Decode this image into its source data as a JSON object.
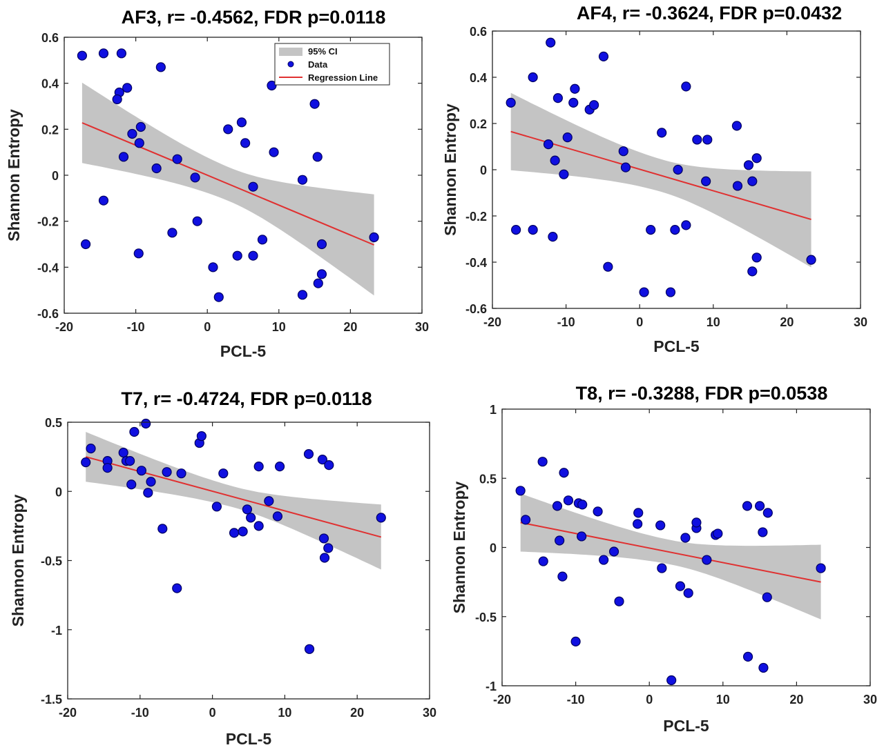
{
  "legend": {
    "ci_label": "95% CI",
    "data_label": "Data",
    "line_label": "Regression Line"
  },
  "colors": {
    "marker_fill": "#1010e0",
    "marker_edge": "#000060",
    "regression_line": "#e03030",
    "ci_band": "#c4c4c4"
  },
  "chart_data": [
    {
      "type": "scatter",
      "title": "AF3, r= -0.4562, FDR p=0.0118",
      "xlabel": "PCL-5",
      "ylabel": "Shannon Entropy",
      "xlim": [
        -20,
        30
      ],
      "ylim": [
        -0.6,
        0.6
      ],
      "xticks": [
        -20,
        -10,
        0,
        10,
        20,
        30
      ],
      "yticks": [
        -0.6,
        -0.4,
        -0.2,
        0,
        0.2,
        0.4,
        0.6
      ],
      "xticklabels": [
        "-20",
        "-10",
        "0",
        "10",
        "20",
        "30"
      ],
      "yticklabels": [
        "-0.6",
        "-0.4",
        "-0.2",
        "0",
        "0.2",
        "0.4",
        "0.6"
      ],
      "grid": false,
      "legend_position": "top-right",
      "show_legend": true,
      "regression": {
        "x": [
          -17.5,
          23.3
        ],
        "y": [
          0.228,
          -0.303
        ]
      },
      "ci": {
        "x": [
          -17.5,
          23.3
        ],
        "upper": [
          0.4,
          -0.08
        ],
        "lower": [
          0.05,
          -0.52
        ],
        "center_x": 3
      },
      "points": [
        [
          -17.5,
          0.52
        ],
        [
          -14.5,
          0.53
        ],
        [
          -12.0,
          0.53
        ],
        [
          -6.5,
          0.47
        ],
        [
          -12.3,
          0.36
        ],
        [
          -11.2,
          0.38
        ],
        [
          -12.6,
          0.33
        ],
        [
          -9.3,
          0.21
        ],
        [
          -10.5,
          0.18
        ],
        [
          -9.5,
          0.14
        ],
        [
          -11.7,
          0.08
        ],
        [
          -7.1,
          0.03
        ],
        [
          -4.2,
          0.07
        ],
        [
          -1.7,
          -0.01
        ],
        [
          -17.0,
          -0.3
        ],
        [
          -14.5,
          -0.11
        ],
        [
          -9.6,
          -0.34
        ],
        [
          -4.9,
          -0.25
        ],
        [
          -1.4,
          -0.2
        ],
        [
          0.8,
          -0.4
        ],
        [
          1.6,
          -0.53
        ],
        [
          2.9,
          0.2
        ],
        [
          4.8,
          0.23
        ],
        [
          5.3,
          0.14
        ],
        [
          6.4,
          -0.05
        ],
        [
          4.2,
          -0.35
        ],
        [
          6.4,
          -0.35
        ],
        [
          7.7,
          -0.28
        ],
        [
          9.0,
          0.39
        ],
        [
          9.3,
          0.1
        ],
        [
          13.3,
          -0.02
        ],
        [
          13.3,
          -0.52
        ],
        [
          15.0,
          0.31
        ],
        [
          15.4,
          0.08
        ],
        [
          15.5,
          -0.47
        ],
        [
          16.0,
          -0.3
        ],
        [
          16.0,
          -0.43
        ],
        [
          23.3,
          -0.27
        ]
      ]
    },
    {
      "type": "scatter",
      "title": "AF4, r= -0.3624, FDR p=0.0432",
      "xlabel": "PCL-5",
      "ylabel": "Shannon Entropy",
      "xlim": [
        -20,
        30
      ],
      "ylim": [
        -0.6,
        0.6
      ],
      "xticks": [
        -20,
        -10,
        0,
        10,
        20,
        30
      ],
      "yticks": [
        -0.6,
        -0.4,
        -0.2,
        0,
        0.2,
        0.4,
        0.6
      ],
      "xticklabels": [
        "-20",
        "-10",
        "0",
        "10",
        "20",
        "30"
      ],
      "yticklabels": [
        "-0.6",
        "-0.4",
        "-0.2",
        "0",
        "0.2",
        "0.4",
        "0.6"
      ],
      "grid": false,
      "legend_position": "none",
      "show_legend": false,
      "regression": {
        "x": [
          -17.5,
          23.3
        ],
        "y": [
          0.165,
          -0.215
        ]
      },
      "ci": {
        "x": [
          -17.5,
          23.3
        ],
        "upper": [
          0.33,
          -0.005
        ],
        "lower": [
          -0.005,
          -0.42
        ],
        "center_x": 3
      },
      "points": [
        [
          -17.5,
          0.29
        ],
        [
          -16.8,
          -0.26
        ],
        [
          -14.5,
          0.4
        ],
        [
          -14.5,
          -0.26
        ],
        [
          -12.1,
          0.55
        ],
        [
          -12.4,
          0.11
        ],
        [
          -11.8,
          -0.29
        ],
        [
          -11.5,
          0.04
        ],
        [
          -11.1,
          0.31
        ],
        [
          -10.3,
          -0.02
        ],
        [
          -9.8,
          0.14
        ],
        [
          -9.0,
          0.29
        ],
        [
          -8.8,
          0.35
        ],
        [
          -6.8,
          0.26
        ],
        [
          -6.2,
          0.28
        ],
        [
          -4.9,
          0.49
        ],
        [
          -4.3,
          -0.42
        ],
        [
          -2.2,
          0.08
        ],
        [
          -1.9,
          0.01
        ],
        [
          0.6,
          -0.53
        ],
        [
          1.5,
          -0.26
        ],
        [
          3.0,
          0.16
        ],
        [
          4.2,
          -0.53
        ],
        [
          4.8,
          -0.26
        ],
        [
          5.2,
          0.0
        ],
        [
          6.3,
          0.36
        ],
        [
          6.3,
          -0.24
        ],
        [
          7.8,
          0.13
        ],
        [
          9.2,
          0.13
        ],
        [
          9.0,
          -0.05
        ],
        [
          13.2,
          0.19
        ],
        [
          13.3,
          -0.07
        ],
        [
          14.8,
          0.02
        ],
        [
          15.3,
          -0.05
        ],
        [
          15.3,
          -0.44
        ],
        [
          15.9,
          0.05
        ],
        [
          15.9,
          -0.38
        ],
        [
          23.3,
          -0.39
        ]
      ]
    },
    {
      "type": "scatter",
      "title": "T7, r= -0.4724, FDR p=0.0118",
      "xlabel": "PCL-5",
      "ylabel": "Shannon Entropy",
      "xlim": [
        -20,
        30
      ],
      "ylim": [
        -1.5,
        0.5
      ],
      "xticks": [
        -20,
        -10,
        0,
        10,
        20,
        30
      ],
      "yticks": [
        -1.5,
        -1,
        -0.5,
        0,
        0.5
      ],
      "xticklabels": [
        "-20",
        "-10",
        "0",
        "10",
        "20",
        "30"
      ],
      "yticklabels": [
        "-1.5",
        "-1",
        "-0.5",
        "0",
        "0.5"
      ],
      "grid": false,
      "legend_position": "none",
      "show_legend": false,
      "regression": {
        "x": [
          -17.5,
          23.3
        ],
        "y": [
          0.25,
          -0.33
        ]
      },
      "ci": {
        "x": [
          -17.5,
          23.3
        ],
        "upper": [
          0.43,
          -0.09
        ],
        "lower": [
          0.07,
          -0.56
        ],
        "center_x": 3
      },
      "points": [
        [
          -17.5,
          0.21
        ],
        [
          -16.8,
          0.31
        ],
        [
          -14.5,
          0.22
        ],
        [
          -14.5,
          0.17
        ],
        [
          -12.3,
          0.28
        ],
        [
          -11.9,
          0.22
        ],
        [
          -11.4,
          0.22
        ],
        [
          -11.2,
          0.05
        ],
        [
          -10.8,
          0.43
        ],
        [
          -9.8,
          0.15
        ],
        [
          -9.2,
          0.49
        ],
        [
          -8.9,
          -0.01
        ],
        [
          -8.5,
          0.07
        ],
        [
          -6.9,
          -0.27
        ],
        [
          -6.3,
          0.14
        ],
        [
          -4.9,
          -0.7
        ],
        [
          -4.3,
          0.13
        ],
        [
          -1.8,
          0.35
        ],
        [
          -1.5,
          0.4
        ],
        [
          0.6,
          -0.11
        ],
        [
          1.5,
          0.13
        ],
        [
          3.0,
          -0.3
        ],
        [
          4.2,
          -0.29
        ],
        [
          4.8,
          -0.13
        ],
        [
          5.3,
          -0.19
        ],
        [
          6.4,
          -0.25
        ],
        [
          6.4,
          0.18
        ],
        [
          7.8,
          -0.07
        ],
        [
          9.0,
          -0.18
        ],
        [
          9.3,
          0.18
        ],
        [
          13.3,
          0.27
        ],
        [
          13.4,
          -1.14
        ],
        [
          15.2,
          0.23
        ],
        [
          15.4,
          -0.34
        ],
        [
          15.5,
          -0.48
        ],
        [
          16.0,
          -0.41
        ],
        [
          16.1,
          0.19
        ],
        [
          23.3,
          -0.19
        ]
      ]
    },
    {
      "type": "scatter",
      "title": "T8, r= -0.3288, FDR p=0.0538",
      "xlabel": "PCL-5",
      "ylabel": "Shannon Entropy",
      "xlim": [
        -20,
        30
      ],
      "ylim": [
        -1,
        1
      ],
      "xticks": [
        -20,
        -10,
        0,
        10,
        20,
        30
      ],
      "yticks": [
        -1,
        -0.5,
        0,
        0.5,
        1
      ],
      "xticklabels": [
        "-20",
        "-10",
        "0",
        "10",
        "20",
        "30"
      ],
      "yticklabels": [
        "-1",
        "-0.5",
        "0",
        "0.5",
        "1"
      ],
      "grid": false,
      "legend_position": "none",
      "show_legend": false,
      "regression": {
        "x": [
          -17.5,
          23.3
        ],
        "y": [
          0.18,
          -0.25
        ]
      },
      "ci": {
        "x": [
          -17.5,
          23.3
        ],
        "upper": [
          0.39,
          0.02
        ],
        "lower": [
          -0.03,
          -0.52
        ],
        "center_x": 3
      },
      "points": [
        [
          -17.5,
          0.41
        ],
        [
          -16.8,
          0.2
        ],
        [
          -14.5,
          0.62
        ],
        [
          -14.4,
          -0.1
        ],
        [
          -12.5,
          0.3
        ],
        [
          -12.2,
          0.05
        ],
        [
          -11.8,
          -0.21
        ],
        [
          -11.6,
          0.54
        ],
        [
          -11.0,
          0.34
        ],
        [
          -10.0,
          -0.68
        ],
        [
          -9.6,
          0.32
        ],
        [
          -9.1,
          0.31
        ],
        [
          -9.2,
          0.08
        ],
        [
          -7.0,
          0.26
        ],
        [
          -6.2,
          -0.09
        ],
        [
          -4.8,
          -0.03
        ],
        [
          -4.1,
          -0.39
        ],
        [
          -1.6,
          0.17
        ],
        [
          -1.5,
          0.25
        ],
        [
          1.5,
          0.16
        ],
        [
          1.7,
          -0.15
        ],
        [
          3.0,
          -0.96
        ],
        [
          4.2,
          -0.28
        ],
        [
          4.9,
          0.07
        ],
        [
          5.3,
          -0.33
        ],
        [
          6.4,
          0.14
        ],
        [
          6.4,
          0.18
        ],
        [
          7.8,
          -0.09
        ],
        [
          9.0,
          0.09
        ],
        [
          9.3,
          0.1
        ],
        [
          13.3,
          0.3
        ],
        [
          13.4,
          -0.79
        ],
        [
          15.0,
          0.3
        ],
        [
          15.4,
          0.11
        ],
        [
          15.5,
          -0.87
        ],
        [
          16.0,
          -0.36
        ],
        [
          16.1,
          0.25
        ],
        [
          23.3,
          -0.15
        ]
      ]
    }
  ]
}
